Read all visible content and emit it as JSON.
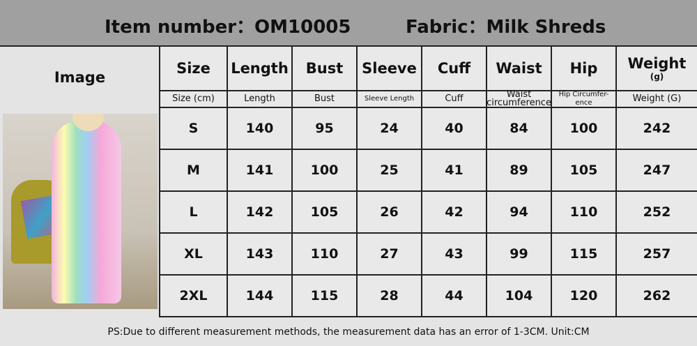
{
  "title": {
    "item_number": "Item number：OM10005",
    "fabric": "Fabric：Milk Shreds"
  },
  "header": {
    "image": "Image",
    "columns": [
      "Size",
      "Length",
      "Bust",
      "Sleeve",
      "Cuff",
      "Waist",
      "Hip",
      "Weight"
    ],
    "weight_unit": "(g)",
    "sub": [
      "Size (cm)",
      "Length",
      "Bust",
      "Sleeve Length",
      "Cuff",
      "Waist circumference",
      "Hip Circumfer-ence",
      "Weight (G)"
    ]
  },
  "rows": [
    [
      "S",
      "140",
      "95",
      "24",
      "40",
      "84",
      "100",
      "242"
    ],
    [
      "M",
      "141",
      "100",
      "25",
      "41",
      "89",
      "105",
      "247"
    ],
    [
      "L",
      "142",
      "105",
      "26",
      "42",
      "94",
      "110",
      "252"
    ],
    [
      "XL",
      "143",
      "110",
      "27",
      "43",
      "99",
      "115",
      "257"
    ],
    [
      "2XL",
      "144",
      "115",
      "28",
      "44",
      "104",
      "120",
      "262"
    ]
  ],
  "footer": "PS:Due to different measurement methods, the measurement data has an error of 1-3CM.   Unit:CM"
}
